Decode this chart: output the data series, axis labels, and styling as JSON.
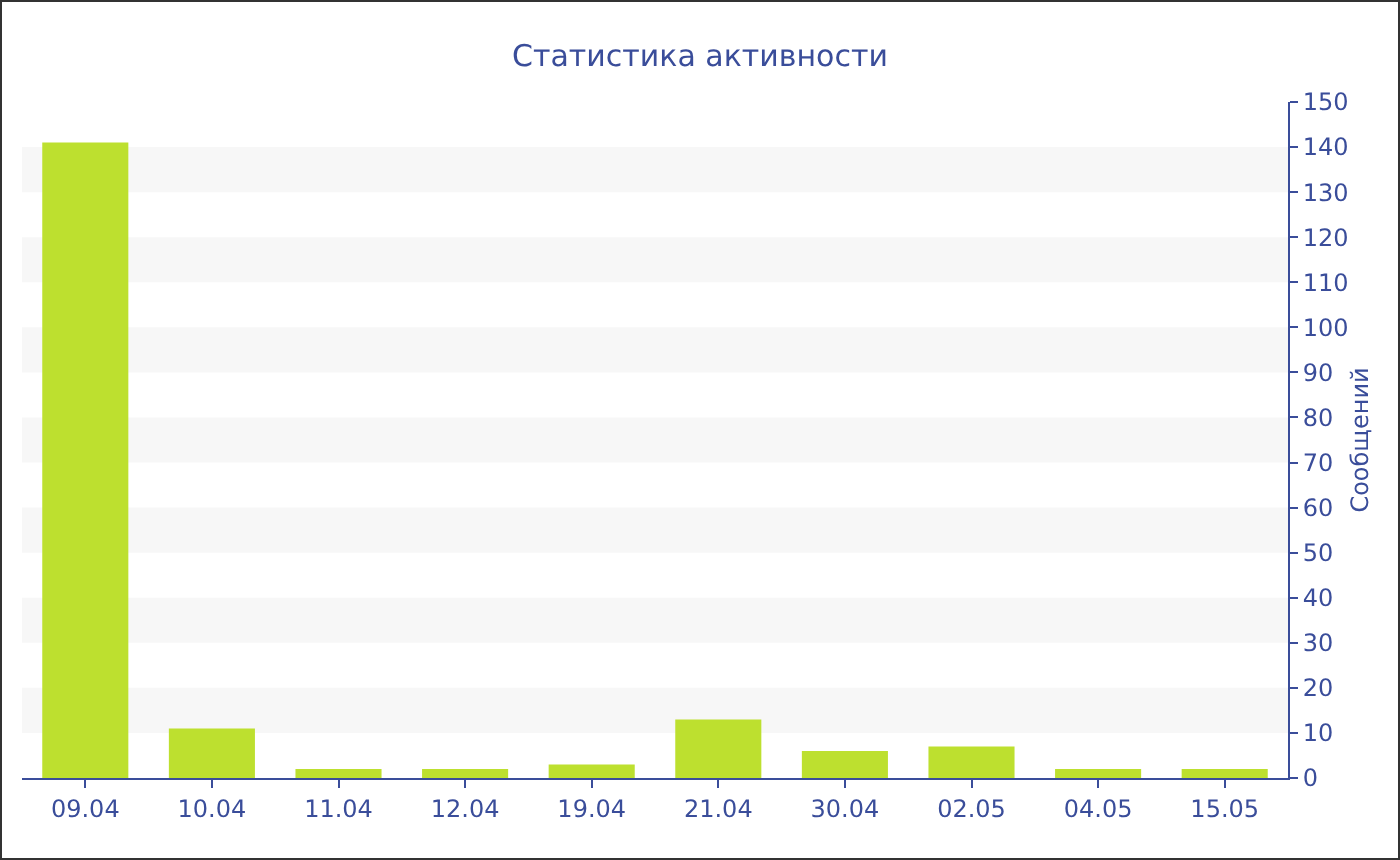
{
  "chart_data": {
    "type": "bar",
    "title": "Статистика активности",
    "ylabel": "Сообщений",
    "categories": [
      "09.04",
      "10.04",
      "11.04",
      "12.04",
      "19.04",
      "21.04",
      "30.04",
      "02.05",
      "04.05",
      "15.05"
    ],
    "values": [
      141,
      11,
      2,
      2,
      3,
      13,
      6,
      7,
      2,
      2
    ],
    "color": "#bde02f",
    "ylim": [
      0,
      150
    ],
    "yticks": [
      0,
      10,
      20,
      30,
      40,
      50,
      60,
      70,
      80,
      90,
      100,
      110,
      120,
      130,
      140,
      150
    ],
    "grid": false,
    "legend": false,
    "bands": [
      {
        "axis": "y",
        "from": 10,
        "to": 20,
        "color": "#f7f7f7"
      },
      {
        "axis": "y",
        "from": 30,
        "to": 40,
        "color": "#f7f7f7"
      },
      {
        "axis": "y",
        "from": 50,
        "to": 60,
        "color": "#f7f7f7"
      },
      {
        "axis": "y",
        "from": 70,
        "to": 80,
        "color": "#f7f7f7"
      },
      {
        "axis": "y",
        "from": 90,
        "to": 100,
        "color": "#f7f7f7"
      },
      {
        "axis": "y",
        "from": 110,
        "to": 120,
        "color": "#f7f7f7"
      },
      {
        "axis": "y",
        "from": 130,
        "to": 140,
        "color": "#f7f7f7"
      }
    ]
  }
}
